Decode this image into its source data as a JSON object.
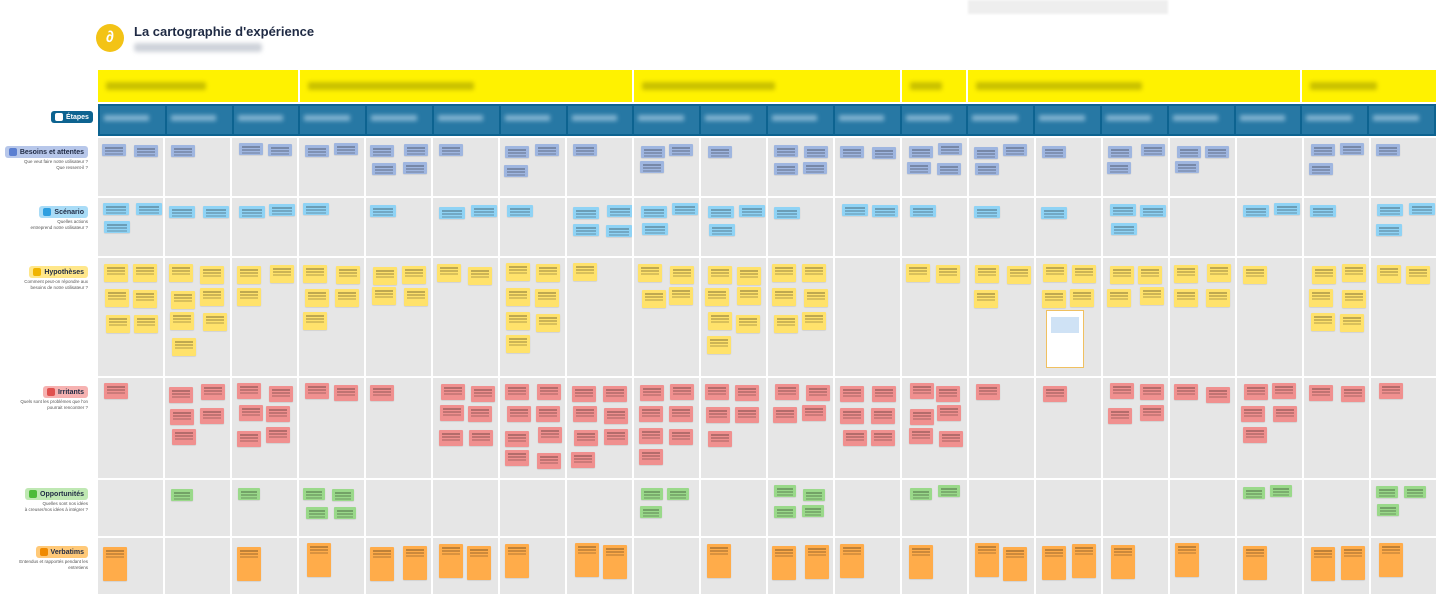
{
  "header": {
    "title": "La cartographie d'expérience"
  },
  "stages_label": "Étapes",
  "rows": [
    {
      "key": "besoins",
      "label": "Besoins et attentes",
      "question": "Que veut faire notre utilisateur ?\nQue ressent-il ?",
      "color": "#b7c7ea",
      "icon_color": "#5b7fd1",
      "note_class": "n-blue"
    },
    {
      "key": "scenario",
      "label": "Scénario",
      "question": "Quelles actions\nentreprend notre utilisateur ?",
      "color": "#a9dcf7",
      "icon_color": "#2e9fe0",
      "note_class": "n-cyan"
    },
    {
      "key": "hypotheses",
      "label": "Hypothèses",
      "question": "Comment peut-on répondre aux\nbesoins de notre utilisateur ?",
      "color": "#ffe78a",
      "icon_color": "#f0b400",
      "note_class": "n-yellow"
    },
    {
      "key": "irritants",
      "label": "Irritants",
      "question": "Quels sont les problèmes que l'on\npourrait rencontrer ?",
      "color": "#f6b2b1",
      "icon_color": "#e0504e",
      "note_class": "n-red"
    },
    {
      "key": "opportunites",
      "label": "Opportunités",
      "question": "Quelles sont nos idées\nà creuser/nos idées à intégrer ?",
      "color": "#bfe8b3",
      "icon_color": "#4dbb3a",
      "note_class": "n-green"
    },
    {
      "key": "verbatims",
      "label": "Verbatims",
      "question": "Entendus et rapportés pendant les\nentretiens",
      "color": "#ffc978",
      "icon_color": "#f08a00",
      "note_class": "n-orange"
    }
  ]
}
